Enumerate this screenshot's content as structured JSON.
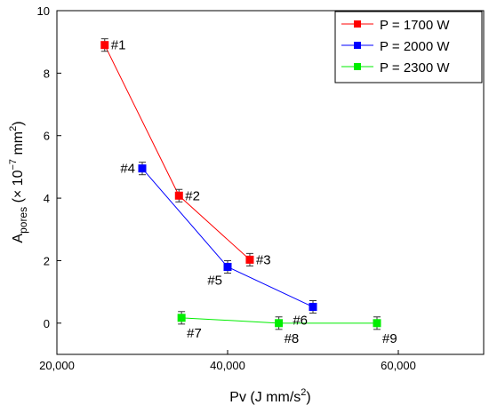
{
  "chart_data": {
    "type": "line",
    "xlabel_main": "Pv (J mm/s",
    "xlabel_sup": "2",
    "xlabel_tail": ")",
    "ylabel_main": "A",
    "ylabel_sub": "pores",
    "ylabel_mid": " (× 10",
    "ylabel_exp": "−7",
    "ylabel_unit": " mm",
    "ylabel_unit_sup": "2",
    "ylabel_tail": ")",
    "xlim": [
      20000,
      70000
    ],
    "ylim": [
      -1,
      10
    ],
    "x_ticks": [
      {
        "value": 20000,
        "label": "20,000"
      },
      {
        "value": 40000,
        "label": "40,000"
      },
      {
        "value": 60000,
        "label": "60,000"
      }
    ],
    "y_ticks": [
      {
        "value": 0,
        "label": "0"
      },
      {
        "value": 2,
        "label": "2"
      },
      {
        "value": 4,
        "label": "4"
      },
      {
        "value": 6,
        "label": "6"
      },
      {
        "value": 8,
        "label": "8"
      },
      {
        "value": 10,
        "label": "10"
      }
    ],
    "legend_position": "top-right",
    "grid": false,
    "series": [
      {
        "name": "P = 1700 W",
        "color": "#ff0000",
        "points": [
          {
            "x": 25600,
            "y": 8.9,
            "err": 0.2,
            "label": "#1",
            "label_pos": "right"
          },
          {
            "x": 34300,
            "y": 4.08,
            "err": 0.2,
            "label": "#2",
            "label_pos": "right"
          },
          {
            "x": 42600,
            "y": 2.03,
            "err": 0.2,
            "label": "#3",
            "label_pos": "right"
          }
        ]
      },
      {
        "name": "P = 2000 W",
        "color": "#0000ff",
        "points": [
          {
            "x": 30000,
            "y": 4.95,
            "err": 0.2,
            "label": "#4",
            "label_pos": "left"
          },
          {
            "x": 40000,
            "y": 1.8,
            "err": 0.2,
            "label": "#5",
            "label_pos": "below-left"
          },
          {
            "x": 50000,
            "y": 0.52,
            "err": 0.2,
            "label": "#6",
            "label_pos": "below-left"
          }
        ]
      },
      {
        "name": "P = 2300 W",
        "color": "#00ee00",
        "points": [
          {
            "x": 34600,
            "y": 0.17,
            "err": 0.2,
            "label": "#7",
            "label_pos": "below-right"
          },
          {
            "x": 46000,
            "y": 0.0,
            "err": 0.2,
            "label": "#8",
            "label_pos": "below-right"
          },
          {
            "x": 57500,
            "y": 0.0,
            "err": 0.2,
            "label": "#9",
            "label_pos": "below-right"
          }
        ]
      }
    ]
  }
}
